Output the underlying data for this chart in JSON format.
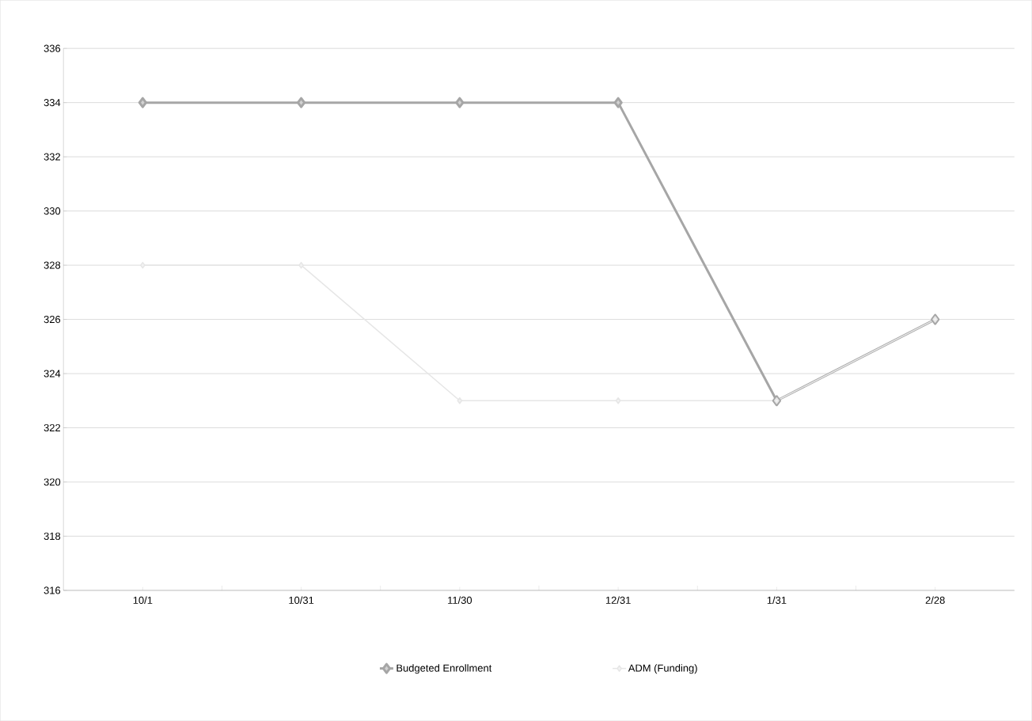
{
  "chart_data": {
    "type": "line",
    "categories": [
      "10/1",
      "10/31",
      "11/30",
      "12/31",
      "1/31",
      "2/28"
    ],
    "series": [
      {
        "name": "Budgeted Enrollment",
        "color": "#a6a6a6",
        "values": [
          334,
          334,
          334,
          334,
          323,
          326
        ]
      },
      {
        "name": "ADM (Funding)",
        "color": "#e6e6e6",
        "values": [
          328,
          328,
          323,
          323,
          323,
          326
        ]
      }
    ],
    "ylim": [
      316,
      336
    ],
    "yticks": [
      316,
      318,
      320,
      322,
      324,
      326,
      328,
      330,
      332,
      334,
      336
    ],
    "grid": "y",
    "legend": "bottom",
    "marker": "diamond",
    "line_style": "solid"
  }
}
